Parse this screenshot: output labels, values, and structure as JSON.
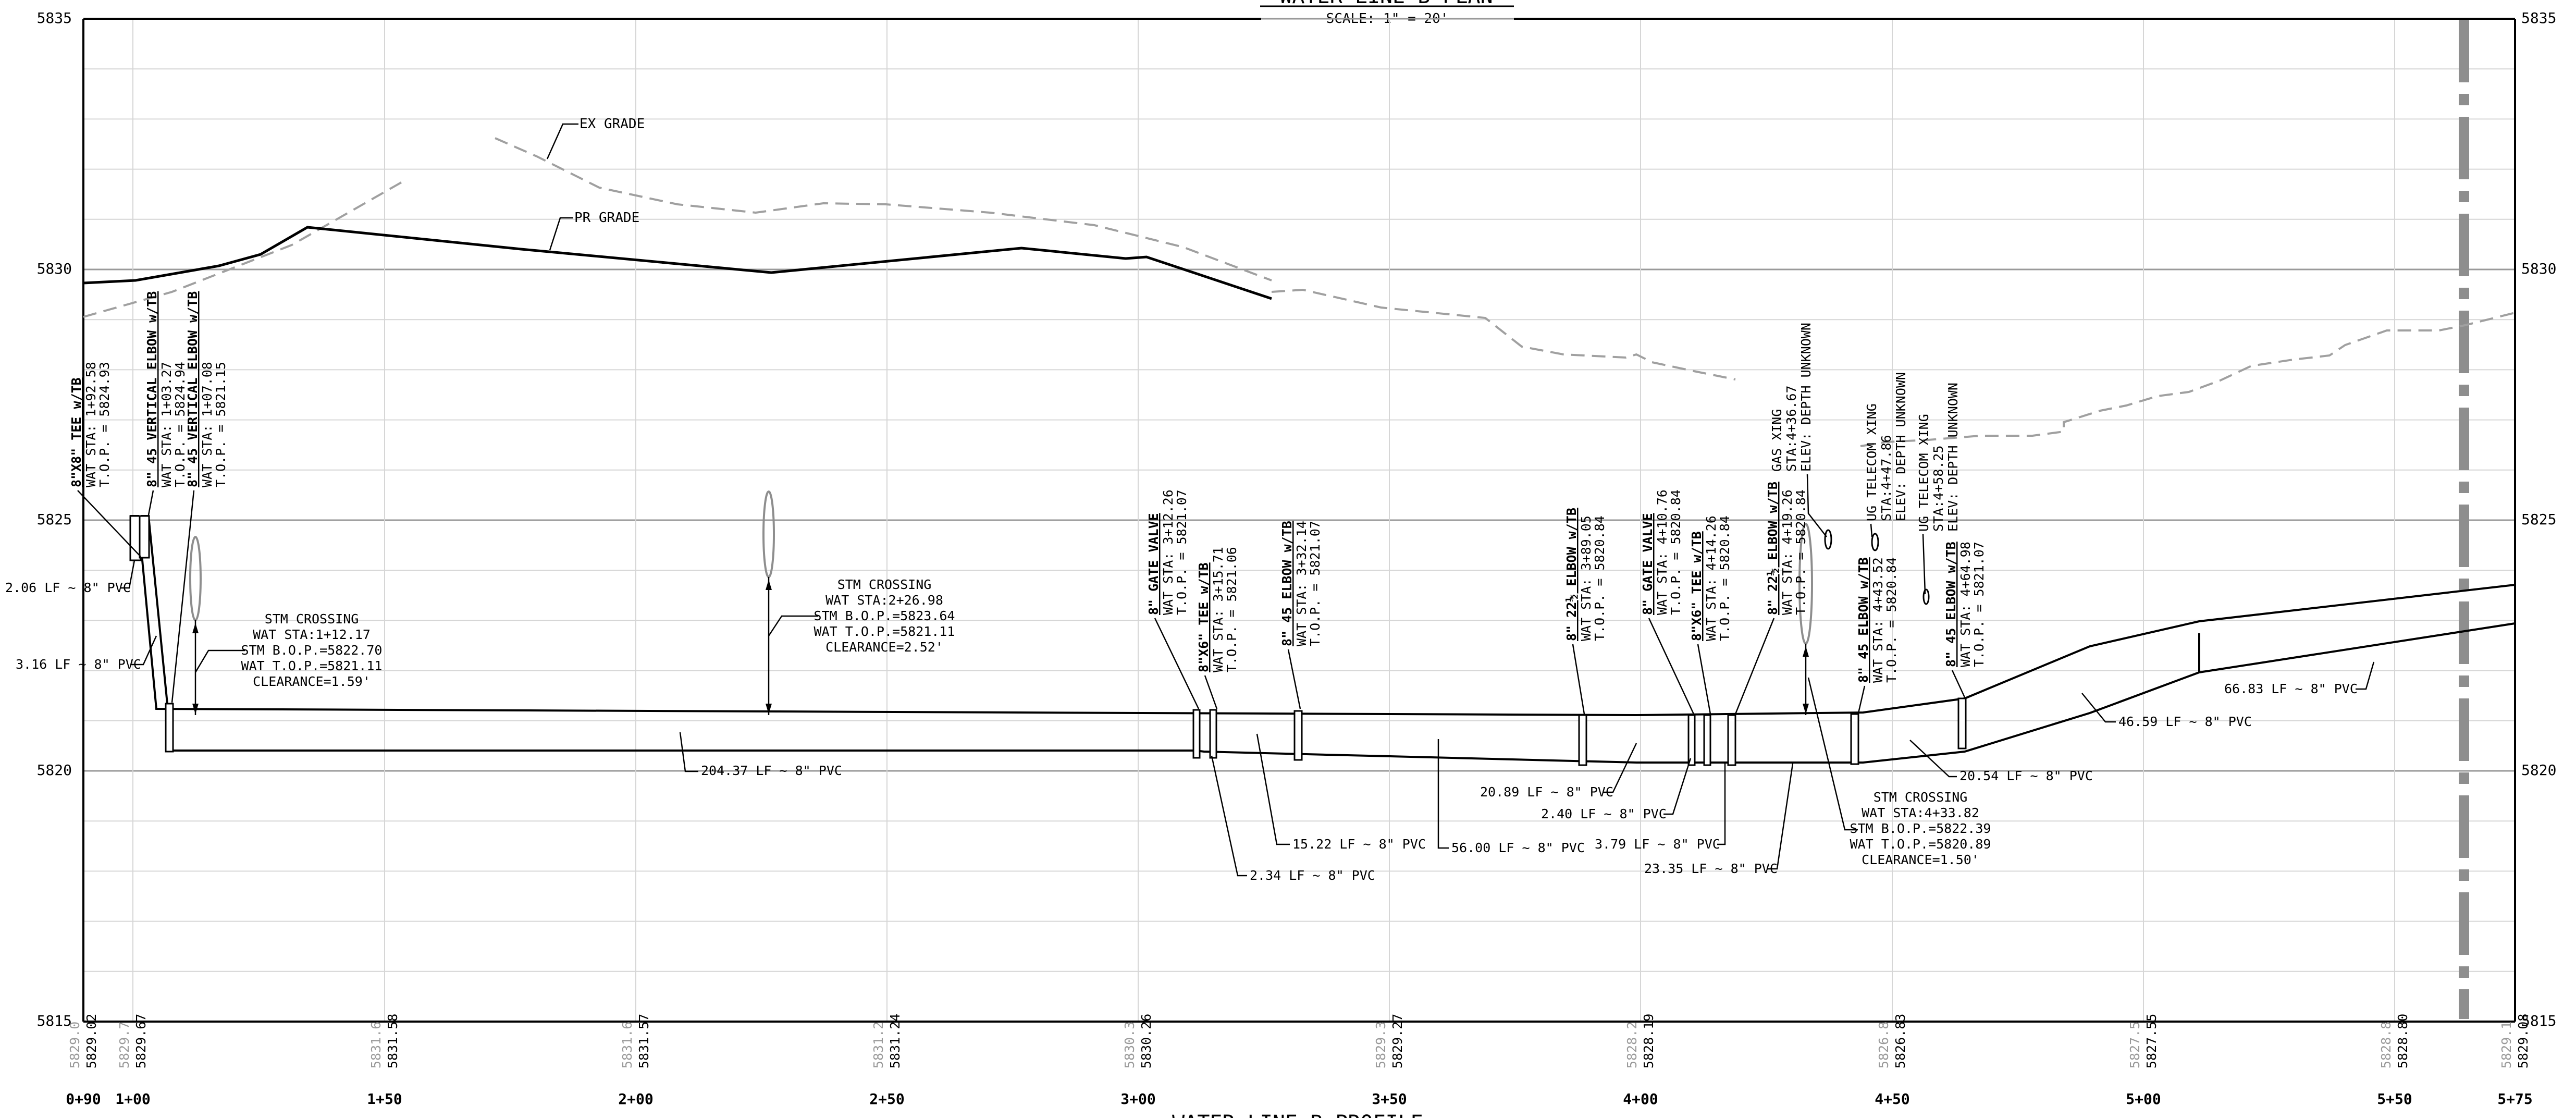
{
  "sheet": {
    "plan_title": "WATER LINE B PLAN",
    "plan_scale": "SCALE: 1\" = 20'",
    "profile_title": "WATER LINE B PROFILE"
  },
  "axes": {
    "elevations": [
      "5835",
      "5830",
      "5825",
      "5820",
      "5815"
    ],
    "stations": [
      "0+90",
      "1+00",
      "1+50",
      "2+00",
      "2+50",
      "3+00",
      "3+50",
      "4+00",
      "4+50",
      "5+00",
      "5+50",
      "5+75"
    ]
  },
  "grade_labels": {
    "existing": "EX GRADE",
    "proposed": "PR GRADE"
  },
  "bottom_elevations": [
    {
      "gray": "5829.0",
      "black": "5829.02"
    },
    {
      "gray": "5829.7",
      "black": "5829.67"
    },
    {
      "gray": "5831.6",
      "black": "5831.58"
    },
    {
      "gray": "5831.6",
      "black": "5831.57"
    },
    {
      "gray": "5831.2",
      "black": "5831.24"
    },
    {
      "gray": "5830.3",
      "black": "5830.26"
    },
    {
      "gray": "5829.3",
      "black": "5829.27"
    },
    {
      "gray": "5828.2",
      "black": "5828.19"
    },
    {
      "gray": "5826.8",
      "black": "5826.83"
    },
    {
      "gray": "5827.5",
      "black": "5827.55"
    },
    {
      "gray": "5828.8",
      "black": "5828.80"
    },
    {
      "gray": "5829.1",
      "black": "5829.08"
    }
  ],
  "fittings": [
    {
      "title": "8\"X8\" TEE w/TB",
      "sta": "WAT STA: 1+92.58",
      "top": "T.O.P. = 5824.93"
    },
    {
      "title": "8\" 45 VERTICAL ELBOW w/TB",
      "sta": "WAT STA: 1+03.27",
      "top": "T.O.P. = 5824.94"
    },
    {
      "title": "8\" 45 VERTICAL ELBOW w/TB",
      "sta": "WAT STA: 1+07.08",
      "top": "T.O.P. = 5821.15"
    },
    {
      "title": "8\" GATE VALVE",
      "sta": "WAT STA: 3+12.26",
      "top": "T.O.P. = 5821.07"
    },
    {
      "title": "8\"X6\" TEE w/TB",
      "sta": "WAT STA: 3+15.71",
      "top": "T.O.P. = 5821.06"
    },
    {
      "title": "8\" 45 ELBOW w/TB",
      "sta": "WAT STA: 3+32.14",
      "top": "T.O.P. = 5821.07"
    },
    {
      "title": "8\" 22½ ELBOW w/TB",
      "sta": "WAT STA: 3+89.05",
      "top": "T.O.P. = 5820.84"
    },
    {
      "title": "8\" GATE VALVE",
      "sta": "WAT STA: 4+10.76",
      "top": "T.O.P. = 5820.84"
    },
    {
      "title": "8\"X6\" TEE w/TB",
      "sta": "WAT STA: 4+14.26",
      "top": "T.O.P. = 5820.84"
    },
    {
      "title": "8\" 22½ ELBOW w/TB",
      "sta": "WAT STA: 4+19.26",
      "top": "T.O.P. = 5820.84"
    },
    {
      "title": "8\" 45 ELBOW w/TB",
      "sta": "WAT STA: 4+43.52",
      "top": "T.O.P. = 5820.84"
    },
    {
      "title": "8\" 45 ELBOW w/TB",
      "sta": "WAT STA: 4+64.98",
      "top": "T.O.P. = 5821.07"
    }
  ],
  "crossings": [
    {
      "lines": [
        "STM CROSSING",
        "WAT STA:1+12.17",
        "STM B.O.P.=5822.70",
        "WAT T.O.P.=5821.11",
        "CLEARANCE=1.59'"
      ]
    },
    {
      "lines": [
        "STM CROSSING",
        "WAT STA:2+26.98",
        "STM B.O.P.=5823.64",
        "WAT T.O.P.=5821.11",
        "CLEARANCE=2.52'"
      ]
    },
    {
      "lines": [
        "STM CROSSING",
        "WAT STA:4+33.82",
        "STM B.O.P.=5822.39",
        "WAT T.O.P.=5820.89",
        "CLEARANCE=1.50'"
      ]
    }
  ],
  "utilities": [
    {
      "lines": [
        "GAS XING",
        "STA:4+36.67",
        "ELEV: DEPTH UNKNOWN"
      ]
    },
    {
      "lines": [
        "UG TELECOM XING",
        "STA:4+47.86",
        "ELEV: DEPTH UNKNOWN"
      ]
    },
    {
      "lines": [
        "UG TELECOM XING",
        "STA:4+58.25",
        "ELEV: DEPTH UNKNOWN"
      ]
    }
  ],
  "pipe_lengths": [
    "2.06 LF ~ 8\" PVC",
    "3.16 LF ~ 8\" PVC",
    "204.37 LF ~ 8\" PVC",
    "15.22 LF ~ 8\" PVC",
    "2.34 LF ~ 8\" PVC",
    "56.00 LF ~ 8\" PVC",
    "20.89 LF ~ 8\" PVC",
    "2.40 LF ~ 8\" PVC",
    "3.79 LF ~ 8\" PVC",
    "23.35 LF ~ 8\" PVC",
    "20.54 LF ~ 8\" PVC",
    "46.59 LF ~ 8\" PVC",
    "66.83 LF ~ 8\" PVC"
  ]
}
